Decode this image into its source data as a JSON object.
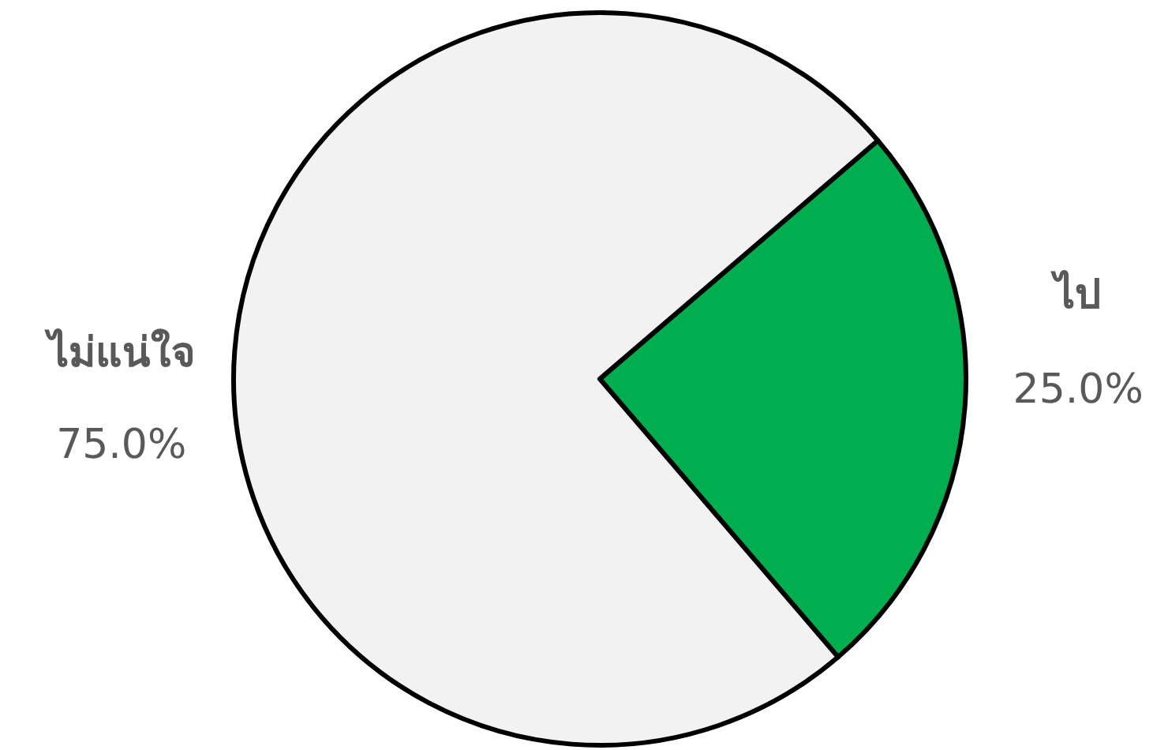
{
  "chart_data": {
    "type": "pie",
    "categories": [
      "ไป",
      "ไม่แน่ใจ"
    ],
    "values": [
      25,
      75
    ],
    "colors": [
      "#00ad4f",
      "#f2f2f2"
    ],
    "value_labels": [
      "25.0%",
      "75.0%"
    ]
  }
}
